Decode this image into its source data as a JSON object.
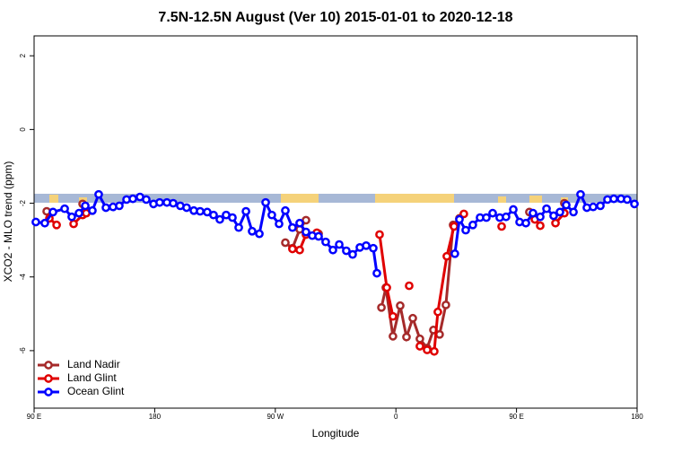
{
  "chart_data": {
    "type": "line",
    "title": "7.5N-12.5N August (Ver 10)   2015-01-01 to 2020-12-18",
    "x_label": "Longitude",
    "y_label": "XCO2 - MLO trend (ppm)",
    "xlim": [
      90,
      540
    ],
    "ylim": [
      -7.56,
      2.54
    ],
    "xticks": [
      {
        "value": 90,
        "label": "90 E"
      },
      {
        "value": 180,
        "label": "180"
      },
      {
        "value": 270,
        "label": "90 W"
      },
      {
        "value": 360,
        "label": "0"
      },
      {
        "value": 450,
        "label": "90 E"
      },
      {
        "value": 540,
        "label": "180"
      }
    ],
    "yticks": [
      -6,
      -4,
      -2,
      0,
      2
    ],
    "legend": "bottom-left",
    "series": [
      {
        "name": "Land Nadir",
        "color": "#a52a2a",
        "x": [
          99.4,
          null,
          126.2,
          null,
          277.5,
          282.8,
          288.2,
          292.9,
          null,
          302.3,
          null,
          349.2,
          352.5,
          357.8,
          363.2,
          367.9,
          372.6,
          377.9,
          383.3,
          388.0,
          392.6,
          397.3,
          402.7,
          407.4,
          null,
          459.6,
          null,
          485.7
        ],
        "values": [
          -2.22,
          null,
          -2.02,
          null,
          -3.07,
          -3.22,
          -2.71,
          -2.46,
          null,
          -2.83,
          null,
          -4.83,
          -4.29,
          -5.61,
          -4.78,
          -5.63,
          -5.12,
          -5.68,
          -5.93,
          -5.44,
          -5.56,
          -4.76,
          -2.59,
          -2.41,
          null,
          -2.24,
          null,
          -2.0
        ]
      },
      {
        "name": "Land Glint",
        "color": "#e00000",
        "x": [
          101.4,
          106.8,
          null,
          119.5,
          126.2,
          128.9,
          null,
          282.8,
          288.2,
          292.9,
          null,
          301.0,
          null,
          347.8,
          353.2,
          357.8,
          null,
          369.9,
          null,
          377.9,
          383.3,
          388.6,
          391.3,
          398.0,
          403.4,
          410.7,
          null,
          438.9,
          null,
          463.7,
          467.7,
          null,
          479.1,
          485.7
        ],
        "values": [
          -2.41,
          -2.59,
          null,
          -2.56,
          -2.32,
          -2.27,
          null,
          -3.24,
          -3.27,
          -2.85,
          null,
          -2.8,
          null,
          -2.85,
          -4.29,
          -5.07,
          null,
          -4.24,
          null,
          -5.88,
          -5.98,
          -6.02,
          -4.95,
          -3.44,
          -2.63,
          -2.29,
          null,
          -2.63,
          null,
          -2.44,
          -2.61,
          null,
          -2.54,
          -2.27
        ]
      },
      {
        "name": "Ocean Glint",
        "color": "#0000ff",
        "x": [
          91.3,
          98.0,
          104.1,
          112.8,
          118.1,
          123.5,
          128.2,
          133.5,
          138.2,
          143.6,
          148.9,
          153.6,
          159.0,
          163.7,
          169.0,
          173.7,
          179.1,
          183.7,
          189.1,
          193.8,
          199.1,
          203.8,
          209.2,
          213.9,
          219.2,
          223.9,
          228.6,
          233.3,
          238.0,
          242.7,
          248.1,
          252.7,
          258.1,
          262.8,
          267.4,
          272.8,
          277.5,
          282.8,
          288.2,
          292.9,
          297.6,
          302.3,
          307.6,
          313.0,
          317.7,
          323.0,
          327.7,
          333.1,
          337.8,
          343.1,
          345.8,
          null,
          404.0,
          407.4,
          412.1,
          417.4,
          422.8,
          427.5,
          432.2,
          437.5,
          442.2,
          447.6,
          452.3,
          457.0,
          462.3,
          467.7,
          472.4,
          477.7,
          482.4,
          487.1,
          492.5,
          497.8,
          502.5,
          507.2,
          512.6,
          517.9,
          522.6,
          528.0,
          532.6,
          538.0
        ],
        "values": [
          -2.51,
          -2.54,
          -2.24,
          -2.15,
          -2.37,
          -2.27,
          -2.07,
          -2.2,
          -1.76,
          -2.12,
          -2.1,
          -2.07,
          -1.9,
          -1.88,
          -1.83,
          -1.9,
          -2.02,
          -1.98,
          -1.98,
          -2.0,
          -2.07,
          -2.12,
          -2.2,
          -2.22,
          -2.24,
          -2.32,
          -2.44,
          -2.32,
          -2.39,
          -2.66,
          -2.22,
          -2.76,
          -2.83,
          -1.98,
          -2.32,
          -2.56,
          -2.2,
          -2.66,
          -2.54,
          -2.78,
          -2.88,
          -2.9,
          -3.05,
          -3.27,
          -3.12,
          -3.29,
          -3.39,
          -3.2,
          -3.15,
          -3.22,
          -3.9,
          null,
          -3.37,
          -2.44,
          -2.73,
          -2.59,
          -2.39,
          -2.39,
          -2.27,
          -2.39,
          -2.37,
          -2.17,
          -2.51,
          -2.54,
          -2.27,
          -2.37,
          -2.15,
          -2.34,
          -2.24,
          -2.05,
          -2.24,
          -1.76,
          -2.12,
          -2.1,
          -2.07,
          -1.9,
          -1.88,
          -1.88,
          -1.9,
          -2.02
        ]
      }
    ]
  }
}
